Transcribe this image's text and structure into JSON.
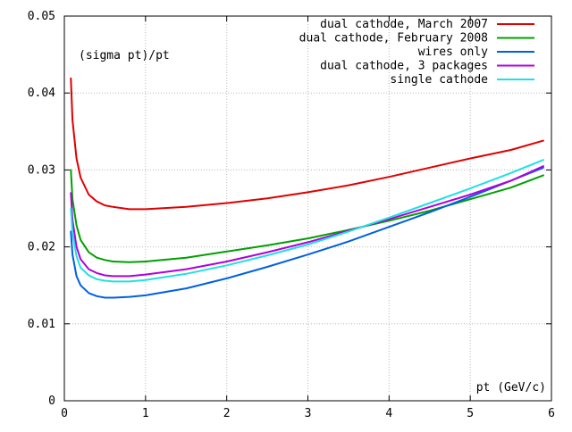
{
  "chart_data": {
    "type": "line",
    "title": "",
    "ylabel": "(sigma pt)/pt",
    "xlabel": "pt (GeV/c)",
    "xlim": [
      0,
      6
    ],
    "ylim": [
      0,
      0.05
    ],
    "xticks": [
      0,
      1,
      2,
      3,
      4,
      5,
      6
    ],
    "xtick_labels": [
      "0",
      "1",
      "2",
      "3",
      "4",
      "5",
      "6"
    ],
    "yticks": [
      0,
      0.01,
      0.02,
      0.03,
      0.04,
      0.05
    ],
    "ytick_labels": [
      "0",
      "0.01",
      "0.02",
      "0.03",
      "0.04",
      "0.05"
    ],
    "grid": true,
    "legend_position": "top-right",
    "series": [
      {
        "name": "dual cathode, March 2007",
        "color": "#e00000",
        "x": [
          0.08,
          0.1,
          0.15,
          0.2,
          0.3,
          0.4,
          0.5,
          0.6,
          0.8,
          1.0,
          1.5,
          2.0,
          2.5,
          3.0,
          3.5,
          4.0,
          4.5,
          5.0,
          5.5,
          5.9
        ],
        "y": [
          0.0419,
          0.0365,
          0.0315,
          0.029,
          0.0268,
          0.0259,
          0.0254,
          0.0252,
          0.0249,
          0.0249,
          0.0252,
          0.0257,
          0.0263,
          0.0271,
          0.028,
          0.0291,
          0.0303,
          0.0315,
          0.0326,
          0.0338
        ]
      },
      {
        "name": "dual cathode, February 2008",
        "color": "#00a000",
        "x": [
          0.08,
          0.1,
          0.15,
          0.2,
          0.3,
          0.4,
          0.5,
          0.6,
          0.8,
          1.0,
          1.5,
          2.0,
          2.5,
          3.0,
          3.5,
          4.0,
          4.5,
          5.0,
          5.5,
          5.9
        ],
        "y": [
          0.03,
          0.0262,
          0.0228,
          0.0209,
          0.0193,
          0.0186,
          0.0183,
          0.0181,
          0.018,
          0.0181,
          0.0186,
          0.0194,
          0.0202,
          0.0211,
          0.0222,
          0.0234,
          0.0247,
          0.0262,
          0.0277,
          0.0293
        ]
      },
      {
        "name": "wires only",
        "color": "#0060e0",
        "x": [
          0.08,
          0.1,
          0.15,
          0.2,
          0.3,
          0.4,
          0.5,
          0.6,
          0.8,
          1.0,
          1.5,
          2.0,
          2.5,
          3.0,
          3.5,
          4.0,
          4.5,
          5.0,
          5.5,
          5.9
        ],
        "y": [
          0.022,
          0.019,
          0.0162,
          0.015,
          0.014,
          0.0136,
          0.0134,
          0.0134,
          0.0135,
          0.0137,
          0.0146,
          0.0159,
          0.0174,
          0.019,
          0.0207,
          0.0226,
          0.0245,
          0.0265,
          0.0286,
          0.0303
        ]
      },
      {
        "name": "dual cathode, 3 packages",
        "color": "#b000e0",
        "x": [
          0.08,
          0.1,
          0.15,
          0.2,
          0.3,
          0.4,
          0.5,
          0.6,
          0.8,
          1.0,
          1.5,
          2.0,
          2.5,
          3.0,
          3.5,
          4.0,
          4.5,
          5.0,
          5.5,
          5.9
        ],
        "y": [
          0.027,
          0.0235,
          0.02,
          0.0184,
          0.0171,
          0.0166,
          0.0163,
          0.0162,
          0.0162,
          0.0164,
          0.0171,
          0.0181,
          0.0193,
          0.0206,
          0.0221,
          0.0236,
          0.0252,
          0.0268,
          0.0286,
          0.0305
        ]
      },
      {
        "name": "single cathode",
        "color": "#20e0e0",
        "x": [
          0.08,
          0.1,
          0.15,
          0.2,
          0.3,
          0.4,
          0.5,
          0.6,
          0.8,
          1.0,
          1.5,
          2.0,
          2.5,
          3.0,
          3.5,
          4.0,
          4.5,
          5.0,
          5.5,
          5.9
        ],
        "y": [
          0.025,
          0.0218,
          0.0188,
          0.0173,
          0.0163,
          0.0158,
          0.0156,
          0.0155,
          0.0155,
          0.0157,
          0.0165,
          0.0176,
          0.0189,
          0.0203,
          0.022,
          0.0238,
          0.0257,
          0.0276,
          0.0296,
          0.0313
        ]
      }
    ]
  }
}
